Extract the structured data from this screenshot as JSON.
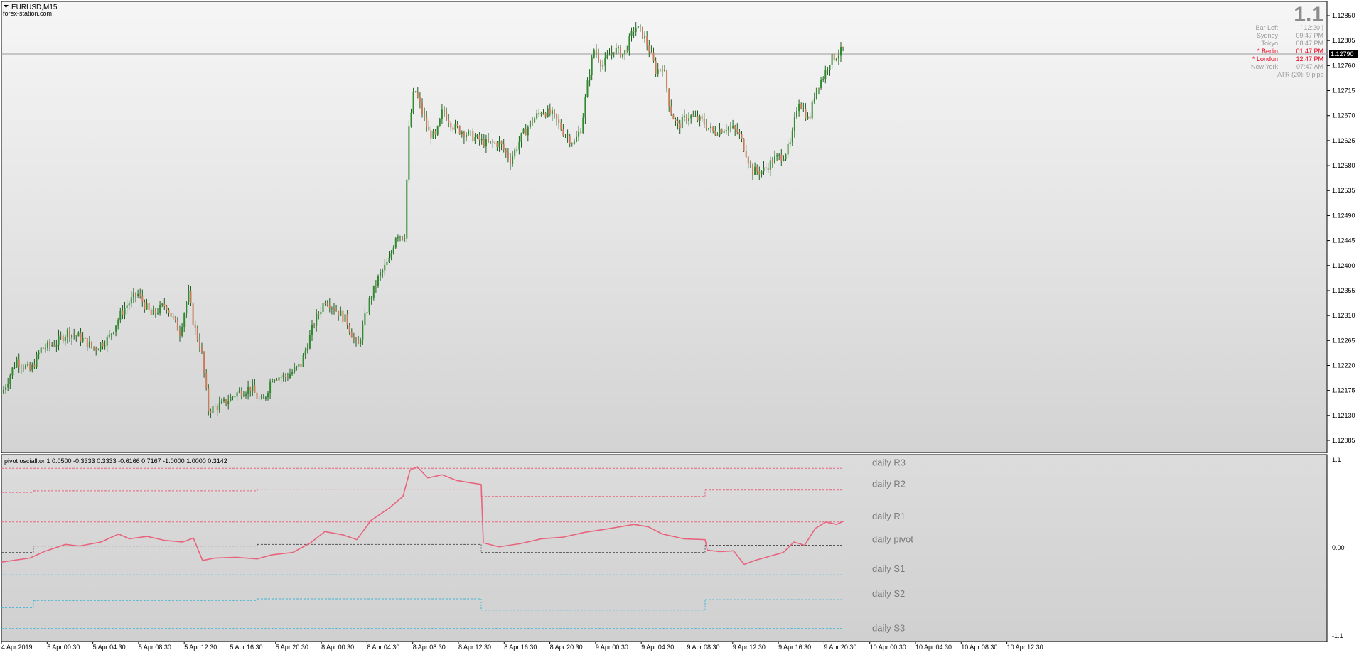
{
  "header": {
    "symbol_label": "EURUSD,M15",
    "watermark": "forex-station.com",
    "big_value": "1.1"
  },
  "info_panel": {
    "rows": [
      {
        "label": "Bar Left",
        "value": "[ 12:20 ]",
        "color": "#9a9a9a"
      },
      {
        "label": "Sydney",
        "value": "09:47 PM",
        "color": "#9a9a9a"
      },
      {
        "label": "Tokyo",
        "value": "08:47 PM",
        "color": "#9a9a9a"
      },
      {
        "label": "* Berlin",
        "value": "01:47 PM",
        "color": "#e8001c"
      },
      {
        "label": "* London",
        "value": "12:47 PM",
        "color": "#e8001c"
      },
      {
        "label": "New York",
        "value": "07:47 AM",
        "color": "#9a9a9a"
      }
    ],
    "atr": "ATR (20): 9 pips"
  },
  "price_axis": {
    "labels": [
      "1.12850",
      "1.12805",
      "1.12760",
      "1.12715",
      "1.12670",
      "1.12625",
      "1.12580",
      "1.12535",
      "1.12490",
      "1.12445",
      "1.12400",
      "1.12355",
      "1.12310",
      "1.12265",
      "1.12220",
      "1.12175",
      "1.12130",
      "1.12085"
    ],
    "current_price": "1.12790"
  },
  "time_axis": {
    "labels": [
      "4 Apr 2019",
      "5 Apr 00:30",
      "5 Apr 04:30",
      "5 Apr 08:30",
      "5 Apr 12:30",
      "5 Apr 16:30",
      "5 Apr 20:30",
      "8 Apr 00:30",
      "8 Apr 04:30",
      "8 Apr 08:30",
      "8 Apr 12:30",
      "8 Apr 16:30",
      "8 Apr 20:30",
      "9 Apr 00:30",
      "9 Apr 04:30",
      "9 Apr 08:30",
      "9 Apr 12:30",
      "9 Apr 16:30",
      "9 Apr 20:30",
      "10 Apr 00:30",
      "10 Apr 04:30",
      "10 Apr 08:30",
      "10 Apr 12:30"
    ]
  },
  "oscillator": {
    "title": "pivot oscialltor 1 0.0500 -0.3333 0.3333 -0.6166 0.7167 -1.0000 1.0000 0.3142",
    "axis_labels": [
      "1.1",
      "0.00",
      "-1.1"
    ],
    "levels": [
      "daily R3",
      "daily R2",
      "daily R1",
      "daily pivot",
      "daily S1",
      "daily S2",
      "daily S3"
    ]
  },
  "chart_data": [
    {
      "type": "candlestick",
      "title": "EURUSD,M15",
      "ylim": [
        1.12085,
        1.1285
      ],
      "x_range": [
        "4 Apr 2019",
        "10 Apr 12:30"
      ],
      "bull_color": "#2e8b2e",
      "bear_color": "#c87b5a",
      "grid": false,
      "close_path": [
        [
          0,
          1.1217
        ],
        [
          20,
          1.1223
        ],
        [
          40,
          1.1221
        ],
        [
          55,
          1.1225
        ],
        [
          75,
          1.1226
        ],
        [
          92,
          1.1228
        ],
        [
          110,
          1.1227
        ],
        [
          130,
          1.1225
        ],
        [
          150,
          1.1227
        ],
        [
          170,
          1.1232
        ],
        [
          190,
          1.1235
        ],
        [
          210,
          1.1231
        ],
        [
          230,
          1.1233
        ],
        [
          250,
          1.1228
        ],
        [
          262,
          1.1235
        ],
        [
          270,
          1.1229
        ],
        [
          280,
          1.1225
        ],
        [
          290,
          1.1214
        ],
        [
          310,
          1.1215
        ],
        [
          330,
          1.1217
        ],
        [
          350,
          1.1218
        ],
        [
          366,
          1.1215
        ],
        [
          380,
          1.122
        ],
        [
          400,
          1.122
        ],
        [
          420,
          1.1222
        ],
        [
          440,
          1.123
        ],
        [
          455,
          1.1234
        ],
        [
          470,
          1.1232
        ],
        [
          485,
          1.123
        ],
        [
          500,
          1.1225
        ],
        [
          515,
          1.1233
        ],
        [
          530,
          1.1238
        ],
        [
          545,
          1.1241
        ],
        [
          555,
          1.1246
        ],
        [
          566,
          1.1245
        ],
        [
          572,
          1.1264
        ],
        [
          580,
          1.1272
        ],
        [
          590,
          1.1268
        ],
        [
          600,
          1.1264
        ],
        [
          610,
          1.1263
        ],
        [
          620,
          1.1268
        ],
        [
          635,
          1.1265
        ],
        [
          650,
          1.1264
        ],
        [
          665,
          1.1263
        ],
        [
          680,
          1.1262
        ],
        [
          700,
          1.1262
        ],
        [
          715,
          1.1259
        ],
        [
          730,
          1.1263
        ],
        [
          745,
          1.1266
        ],
        [
          760,
          1.1268
        ],
        [
          775,
          1.1267
        ],
        [
          790,
          1.1264
        ],
        [
          805,
          1.1262
        ],
        [
          815,
          1.1265
        ],
        [
          825,
          1.1274
        ],
        [
          833,
          1.1279
        ],
        [
          845,
          1.1276
        ],
        [
          860,
          1.1279
        ],
        [
          875,
          1.1278
        ],
        [
          890,
          1.1283
        ],
        [
          900,
          1.1282
        ],
        [
          910,
          1.1279
        ],
        [
          920,
          1.1275
        ],
        [
          930,
          1.1276
        ],
        [
          940,
          1.1268
        ],
        [
          950,
          1.1265
        ],
        [
          965,
          1.1267
        ],
        [
          985,
          1.1266
        ],
        [
          1000,
          1.1264
        ],
        [
          1020,
          1.1265
        ],
        [
          1035,
          1.1264
        ],
        [
          1045,
          1.1261
        ],
        [
          1055,
          1.1257
        ],
        [
          1070,
          1.1257
        ],
        [
          1085,
          1.1259
        ],
        [
          1100,
          1.126
        ],
        [
          1110,
          1.1262
        ],
        [
          1120,
          1.127
        ],
        [
          1135,
          1.1266
        ],
        [
          1145,
          1.1272
        ],
        [
          1155,
          1.1274
        ],
        [
          1165,
          1.1277
        ],
        [
          1175,
          1.1278
        ],
        [
          1185,
          1.1279
        ]
      ]
    },
    {
      "type": "line",
      "title": "pivot oscialltor 1 0.0500 -0.3333 0.3333 -0.6166 0.7167 -1.0000 1.0000 0.3142",
      "ylim": [
        -1.1,
        1.1
      ],
      "series": [
        {
          "name": "pivot oscialltor",
          "color": "#e8647e",
          "points": [
            [
              0,
              -0.17
            ],
            [
              40,
              -0.12
            ],
            [
              60,
              -0.04
            ],
            [
              90,
              0.05
            ],
            [
              110,
              0.03
            ],
            [
              140,
              0.08
            ],
            [
              165,
              0.18
            ],
            [
              180,
              0.12
            ],
            [
              205,
              0.15
            ],
            [
              230,
              0.1
            ],
            [
              255,
              0.08
            ],
            [
              270,
              0.13
            ],
            [
              283,
              -0.15
            ],
            [
              300,
              -0.12
            ],
            [
              330,
              -0.11
            ],
            [
              360,
              -0.13
            ],
            [
              380,
              -0.08
            ],
            [
              410,
              -0.05
            ],
            [
              435,
              0.07
            ],
            [
              455,
              0.21
            ],
            [
              480,
              0.17
            ],
            [
              500,
              0.11
            ],
            [
              520,
              0.35
            ],
            [
              545,
              0.5
            ],
            [
              565,
              0.65
            ],
            [
              575,
              0.98
            ],
            [
              585,
              1.02
            ],
            [
              600,
              0.88
            ],
            [
              620,
              0.92
            ],
            [
              640,
              0.85
            ],
            [
              660,
              0.82
            ],
            [
              675,
              0.8
            ],
            [
              678,
              0.07
            ],
            [
              700,
              0.02
            ],
            [
              730,
              0.06
            ],
            [
              760,
              0.12
            ],
            [
              790,
              0.14
            ],
            [
              820,
              0.2
            ],
            [
              850,
              0.24
            ],
            [
              890,
              0.3
            ],
            [
              910,
              0.27
            ],
            [
              930,
              0.18
            ],
            [
              960,
              0.12
            ],
            [
              990,
              0.11
            ],
            [
              993,
              -0.02
            ],
            [
              1010,
              -0.04
            ],
            [
              1030,
              -0.03
            ],
            [
              1045,
              -0.2
            ],
            [
              1060,
              -0.15
            ],
            [
              1080,
              -0.1
            ],
            [
              1100,
              -0.05
            ],
            [
              1115,
              0.08
            ],
            [
              1130,
              0.04
            ],
            [
              1145,
              0.25
            ],
            [
              1160,
              0.33
            ],
            [
              1175,
              0.3
            ],
            [
              1185,
              0.34
            ]
          ]
        }
      ],
      "levels": [
        {
          "name": "daily R3",
          "color": "#e8647e",
          "segments": [
            [
              0,
              1185,
              1.0
            ]
          ]
        },
        {
          "name": "daily R2",
          "color": "#e8647e",
          "segments": [
            [
              0,
              45,
              0.7
            ],
            [
              45,
              360,
              0.72
            ],
            [
              360,
              675,
              0.74
            ],
            [
              675,
              990,
              0.65
            ],
            [
              990,
              1185,
              0.73
            ]
          ]
        },
        {
          "name": "daily R1",
          "color": "#e8647e",
          "segments": [
            [
              0,
              1185,
              0.33
            ]
          ]
        },
        {
          "name": "daily pivot",
          "color": "#555555",
          "segments": [
            [
              0,
              45,
              -0.05
            ],
            [
              45,
              360,
              0.03
            ],
            [
              360,
              675,
              0.05
            ],
            [
              675,
              990,
              -0.05
            ],
            [
              990,
              1185,
              0.04
            ]
          ]
        },
        {
          "name": "daily S1",
          "color": "#3fb5d8",
          "segments": [
            [
              0,
              1185,
              -0.33
            ]
          ]
        },
        {
          "name": "daily S2",
          "color": "#3fb5d8",
          "segments": [
            [
              0,
              45,
              -0.74
            ],
            [
              45,
              360,
              -0.65
            ],
            [
              360,
              675,
              -0.63
            ],
            [
              675,
              990,
              -0.77
            ],
            [
              990,
              1185,
              -0.64
            ]
          ]
        },
        {
          "name": "daily S3",
          "color": "#3fb5d8",
          "segments": [
            [
              0,
              1185,
              -1.0
            ]
          ]
        }
      ]
    }
  ]
}
